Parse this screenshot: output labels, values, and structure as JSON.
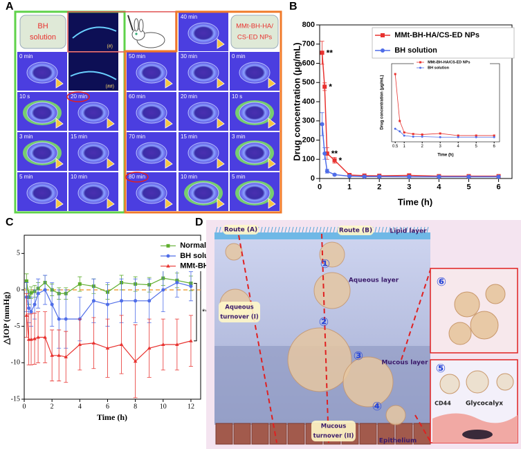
{
  "panel_labels": [
    "A",
    "B",
    "C",
    "D"
  ],
  "panel_a": {
    "bh_label": [
      "BH",
      "solution"
    ],
    "np_label": [
      "MMt-BH-HA/",
      "CS-ED NPs"
    ],
    "marks": [
      "(#)",
      "(##)"
    ],
    "frame_labels": [
      "0 min",
      "10 s",
      "3 min",
      "5 min",
      "20 min",
      "15 min",
      "10 min",
      "40 min",
      "50 min",
      "60 min",
      "70 min",
      "80 min",
      "30 min",
      "20 min",
      "15 min",
      "10 min",
      "0 min",
      "10 s",
      "3 min",
      "5 min"
    ]
  },
  "panel_d": {
    "route_a": "Route (A)",
    "route_b": "Route (B)",
    "lipid_layer": "Lipid layer",
    "aqueous_layer": "Aqueous layer",
    "aqueous_turnover": [
      "Aqueous",
      "turnover (I)"
    ],
    "mucous_layer": "Mucous layer",
    "mucous_turnover": [
      "Mucous",
      "turnover (II)"
    ],
    "epithelium": "Epithelium",
    "cd44": "CD44",
    "glycocalyx": "Glycocalyx",
    "steps": [
      "①",
      "②",
      "③",
      "④",
      "⑤",
      "⑥"
    ]
  },
  "chart_data": [
    {
      "type": "line",
      "x_label": "Time (h)",
      "y_label": "Drug concentration (μg/mL)",
      "x": [
        0.083,
        0.167,
        0.25,
        0.5,
        1,
        1.5,
        2,
        3,
        4,
        5,
        6
      ],
      "xlim": [
        0,
        6.45
      ],
      "ylim": [
        0,
        800
      ],
      "xticks": [
        0,
        1,
        2,
        3,
        4,
        5,
        6
      ],
      "yticks": [
        0,
        100,
        200,
        300,
        400,
        500,
        600,
        700,
        800
      ],
      "grid": false,
      "legend": "upper right",
      "series": [
        {
          "name": "MMt-BH-HA/CS-ED NPs",
          "color": "#e8322f",
          "marker": "square",
          "values": [
            655,
            478,
            130,
            95,
            18,
            15,
            14,
            16,
            12,
            12,
            12
          ],
          "errors": [
            60,
            20,
            30,
            15,
            5,
            3,
            3,
            3,
            3,
            3,
            3
          ]
        },
        {
          "name": "BH solution",
          "color": "#4f6de8",
          "marker": "circle",
          "values": [
            283,
            130,
            38,
            20,
            12,
            10,
            10,
            9,
            9,
            9,
            9
          ],
          "errors": [
            60,
            30,
            10,
            5,
            3,
            3,
            3,
            3,
            3,
            3,
            3
          ]
        }
      ],
      "annotations": [
        "**",
        "*",
        "**",
        "*"
      ]
    },
    {
      "type": "line",
      "x_label": "Time (h)",
      "y_label": "Drug concentration (μg/mL)",
      "x": [
        0.5,
        0.75,
        1,
        1.5,
        2,
        3,
        4,
        5,
        6
      ],
      "xlim": [
        0.3,
        6.3
      ],
      "ylim": [
        0,
        150
      ],
      "xticks": [
        0.5,
        1,
        2,
        3,
        4,
        5,
        6
      ],
      "grid": false,
      "legend": "upper right",
      "series": [
        {
          "name": "MMt-BH-HA/CS-ED NPs",
          "color": "#e8322f",
          "marker": "square",
          "values": [
            130,
            40,
            18,
            15,
            14,
            16,
            12,
            12,
            12
          ]
        },
        {
          "name": "BH solution",
          "color": "#4f6de8",
          "marker": "circle",
          "values": [
            25,
            20,
            12,
            10,
            10,
            9,
            9,
            9,
            9
          ]
        }
      ]
    },
    {
      "type": "line",
      "x_label": "Time (h)",
      "y_label": "△IOP (mmHg)",
      "x": [
        0.17,
        0.33,
        0.5,
        0.75,
        1,
        1.5,
        2,
        2.5,
        3,
        4,
        5,
        6,
        7,
        8,
        9,
        10,
        11,
        12
      ],
      "xlim": [
        0,
        12.7
      ],
      "ylim": [
        -15,
        7.5
      ],
      "xticks": [
        0,
        2,
        4,
        6,
        8,
        10,
        12
      ],
      "yticks": [
        -15,
        -10,
        -5,
        0,
        5
      ],
      "grid": false,
      "legend": "upper right",
      "reference_line": 0,
      "reference_color": "#f0a040",
      "series": [
        {
          "name": "Normal saline",
          "color": "#5fae2e",
          "marker": "square",
          "values": [
            1.2,
            -1,
            -0.4,
            -0.2,
            0.2,
            1,
            0,
            -0.5,
            -0.5,
            0.8,
            0.5,
            -0.3,
            1,
            0.8,
            0.7,
            1.6,
            1.3,
            0.9
          ],
          "errors": [
            1,
            1,
            0.8,
            0.8,
            0.8,
            1,
            0.8,
            0.8,
            0.8,
            1,
            1,
            1,
            1,
            1,
            1,
            1,
            1,
            1
          ]
        },
        {
          "name": "BH solution",
          "color": "#4f6de8",
          "marker": "circle",
          "values": [
            -1,
            -2.5,
            -3,
            -2,
            -0.5,
            0,
            -2,
            -4,
            -4,
            -4,
            -1.5,
            -2,
            -1.5,
            -1.5,
            -1.5,
            0,
            1,
            0.5
          ],
          "errors": [
            2,
            2,
            2,
            2,
            2,
            2,
            3,
            4,
            4,
            3,
            3,
            3,
            3,
            3,
            3,
            3,
            2,
            2
          ]
        },
        {
          "name": "MMt-BH-HA/CS-ED NPs",
          "color": "#e8322f",
          "marker": "triangle",
          "values": [
            -3.5,
            -6.8,
            -6.8,
            -6.7,
            -6.5,
            -6.5,
            -9,
            -9,
            -9.2,
            -7.5,
            -7.3,
            -8,
            -7.5,
            -9.8,
            -8,
            -7.5,
            -7.5,
            -7
          ],
          "errors": [
            3,
            3.5,
            3.5,
            3.5,
            3.5,
            3.5,
            3.5,
            3.5,
            3.5,
            3.5,
            3.5,
            4,
            4,
            5,
            4,
            3.5,
            3.5,
            3.5
          ]
        }
      ],
      "annotations": [
        "***"
      ]
    }
  ]
}
